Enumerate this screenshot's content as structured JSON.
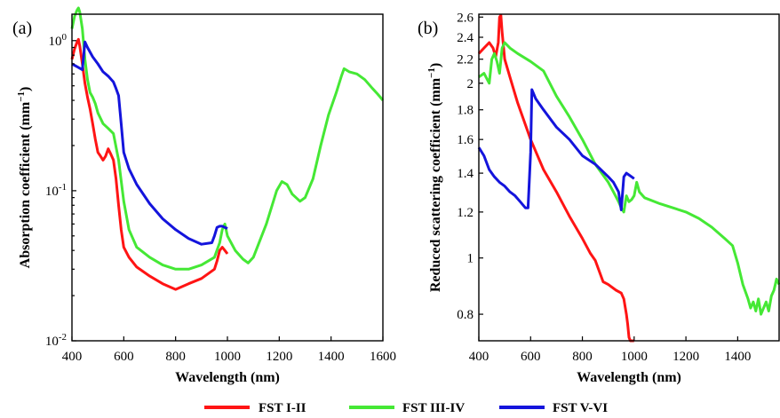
{
  "legend": [
    {
      "label": "FST I-II",
      "color": "#ff1414"
    },
    {
      "label": "FST III-IV",
      "color": "#45e835"
    },
    {
      "label": "FST V-VI",
      "color": "#1414dc"
    }
  ],
  "chart_data": [
    {
      "panel_label": "(a)",
      "type": "line",
      "xlabel": "Wavelength (nm)",
      "ylabel_main": "Absorption coefficient (mm",
      "ylabel_sup": "−1",
      "ylabel_end": ")",
      "y_scale": "log",
      "xlim": [
        400,
        1600
      ],
      "ylim": [
        0.01,
        1.5
      ],
      "x_ticks": [
        400,
        600,
        800,
        1000,
        1200,
        1400,
        1600
      ],
      "y_ticks": [
        {
          "value": 0.01,
          "base": "10",
          "exp": "-2"
        },
        {
          "value": 0.1,
          "base": "10",
          "exp": "-1"
        },
        {
          "value": 1,
          "base": "10",
          "exp": "0"
        }
      ],
      "series": [
        {
          "name": "FST I-II",
          "color": "#ff1414",
          "x": [
            400,
            410,
            420,
            425,
            430,
            440,
            450,
            460,
            470,
            480,
            490,
            500,
            510,
            520,
            530,
            540,
            550,
            560,
            570,
            580,
            590,
            600,
            620,
            650,
            700,
            750,
            800,
            850,
            900,
            950,
            960,
            970,
            980,
            990,
            1000
          ],
          "y": [
            0.75,
            0.88,
            0.98,
            1.02,
            0.92,
            0.7,
            0.52,
            0.42,
            0.35,
            0.28,
            0.22,
            0.18,
            0.17,
            0.16,
            0.17,
            0.19,
            0.175,
            0.16,
            0.12,
            0.08,
            0.055,
            0.042,
            0.036,
            0.031,
            0.027,
            0.024,
            0.022,
            0.024,
            0.026,
            0.03,
            0.034,
            0.04,
            0.042,
            0.04,
            0.038
          ]
        },
        {
          "name": "FST III-IV",
          "color": "#45e835",
          "x": [
            400,
            410,
            420,
            425,
            430,
            440,
            450,
            460,
            470,
            480,
            490,
            500,
            520,
            540,
            560,
            580,
            600,
            620,
            650,
            700,
            750,
            800,
            850,
            900,
            950,
            970,
            980,
            990,
            1000,
            1030,
            1060,
            1080,
            1100,
            1150,
            1190,
            1210,
            1230,
            1250,
            1280,
            1300,
            1330,
            1360,
            1390,
            1420,
            1440,
            1450,
            1470,
            1500,
            1530,
            1560,
            1580,
            1590,
            1600
          ],
          "y": [
            1.2,
            1.45,
            1.6,
            1.65,
            1.55,
            1.2,
            0.75,
            0.55,
            0.45,
            0.42,
            0.38,
            0.33,
            0.28,
            0.26,
            0.24,
            0.16,
            0.085,
            0.055,
            0.042,
            0.036,
            0.032,
            0.03,
            0.03,
            0.032,
            0.036,
            0.045,
            0.055,
            0.06,
            0.05,
            0.04,
            0.035,
            0.033,
            0.036,
            0.06,
            0.1,
            0.115,
            0.11,
            0.095,
            0.085,
            0.09,
            0.12,
            0.2,
            0.32,
            0.45,
            0.58,
            0.65,
            0.62,
            0.6,
            0.55,
            0.48,
            0.44,
            0.42,
            0.4
          ]
        },
        {
          "name": "FST V-VI",
          "color": "#1414dc",
          "x": [
            400,
            420,
            440,
            450,
            460,
            480,
            500,
            520,
            540,
            560,
            570,
            580,
            590,
            600,
            620,
            650,
            700,
            750,
            800,
            850,
            900,
            940,
            950,
            960,
            970,
            980,
            990,
            1000
          ],
          "y": [
            0.7,
            0.67,
            0.64,
            0.98,
            0.9,
            0.78,
            0.7,
            0.62,
            0.58,
            0.53,
            0.48,
            0.43,
            0.28,
            0.18,
            0.14,
            0.11,
            0.082,
            0.065,
            0.055,
            0.048,
            0.044,
            0.045,
            0.05,
            0.057,
            0.058,
            0.058,
            0.057,
            0.056
          ]
        }
      ]
    },
    {
      "panel_label": "(b)",
      "type": "line",
      "xlabel": "Wavelength (nm)",
      "ylabel_main": "Reduced scattering coefficient (mm",
      "ylabel_sup": "−1",
      "ylabel_end": ")",
      "y_scale": "log",
      "xlim": [
        400,
        1560
      ],
      "ylim": [
        0.72,
        2.63
      ],
      "x_ticks": [
        400,
        600,
        800,
        1000,
        1200,
        1400
      ],
      "y_ticks": [
        {
          "value": 0.8,
          "label": "0.8"
        },
        {
          "value": 1,
          "label": "1"
        },
        {
          "value": 1.2,
          "label": "1.2"
        },
        {
          "value": 1.4,
          "label": "1.4"
        },
        {
          "value": 1.6,
          "label": "1.6"
        },
        {
          "value": 1.8,
          "label": "1.8"
        },
        {
          "value": 2,
          "label": "2"
        },
        {
          "value": 2.2,
          "label": "2.2"
        },
        {
          "value": 2.4,
          "label": "2.4"
        },
        {
          "value": 2.6,
          "label": "2.6"
        }
      ],
      "series": [
        {
          "name": "FST I-II",
          "color": "#ff1414",
          "x": [
            400,
            420,
            440,
            455,
            465,
            475,
            480,
            485,
            490,
            500,
            520,
            550,
            600,
            650,
            700,
            750,
            800,
            830,
            850,
            880,
            900,
            930,
            950,
            960,
            970,
            975,
            980,
            985,
            990,
            1000
          ],
          "y": [
            2.25,
            2.3,
            2.35,
            2.3,
            2.22,
            2.35,
            2.6,
            2.62,
            2.45,
            2.2,
            2.05,
            1.85,
            1.6,
            1.42,
            1.3,
            1.18,
            1.08,
            1.02,
            0.99,
            0.91,
            0.9,
            0.88,
            0.87,
            0.85,
            0.8,
            0.77,
            0.73,
            0.72,
            0.72,
            0.72
          ]
        },
        {
          "name": "FST III-IV",
          "color": "#45e835",
          "x": [
            400,
            420,
            440,
            450,
            460,
            470,
            480,
            490,
            500,
            520,
            550,
            600,
            650,
            700,
            750,
            800,
            850,
            900,
            920,
            940,
            950,
            960,
            970,
            980,
            990,
            1000,
            1010,
            1020,
            1040,
            1100,
            1150,
            1200,
            1250,
            1300,
            1350,
            1380,
            1400,
            1420,
            1440,
            1450,
            1460,
            1470,
            1480,
            1490,
            1500,
            1510,
            1520,
            1530,
            1540,
            1550,
            1560
          ],
          "y": [
            2.05,
            2.08,
            2.0,
            2.2,
            2.25,
            2.18,
            2.08,
            2.3,
            2.35,
            2.3,
            2.25,
            2.18,
            2.1,
            1.9,
            1.75,
            1.6,
            1.45,
            1.35,
            1.3,
            1.25,
            1.22,
            1.2,
            1.28,
            1.25,
            1.26,
            1.28,
            1.35,
            1.3,
            1.27,
            1.24,
            1.22,
            1.2,
            1.17,
            1.13,
            1.08,
            1.05,
            0.98,
            0.9,
            0.85,
            0.82,
            0.84,
            0.81,
            0.85,
            0.8,
            0.82,
            0.84,
            0.81,
            0.86,
            0.88,
            0.92,
            0.9
          ]
        },
        {
          "name": "FST V-VI",
          "color": "#1414dc",
          "x": [
            400,
            420,
            440,
            460,
            480,
            500,
            520,
            540,
            560,
            580,
            590,
            600,
            605,
            620,
            650,
            700,
            750,
            800,
            850,
            900,
            920,
            940,
            950,
            960,
            970,
            980,
            990,
            1000
          ],
          "y": [
            1.55,
            1.5,
            1.42,
            1.38,
            1.35,
            1.33,
            1.3,
            1.28,
            1.25,
            1.22,
            1.22,
            1.52,
            1.95,
            1.88,
            1.8,
            1.68,
            1.6,
            1.5,
            1.45,
            1.38,
            1.35,
            1.3,
            1.21,
            1.38,
            1.4,
            1.39,
            1.38,
            1.37
          ]
        }
      ]
    }
  ]
}
